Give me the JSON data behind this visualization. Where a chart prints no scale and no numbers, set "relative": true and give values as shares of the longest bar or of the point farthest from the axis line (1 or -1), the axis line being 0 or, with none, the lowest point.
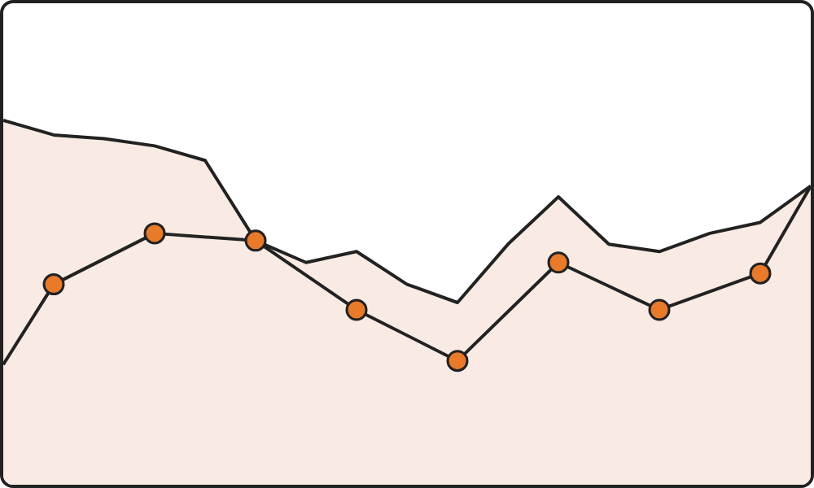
{
  "chart_data": {
    "type": "area",
    "relative": true,
    "marker": "circle",
    "categories": [
      null,
      null,
      null,
      null,
      null,
      null,
      null,
      null,
      null,
      null,
      null,
      null,
      null,
      null,
      null,
      null,
      null
    ],
    "series": [
      {
        "color": "#f9ebe3",
        "marker": "none",
        "values": [
          1,
          0.96,
          0.95,
          0.93,
          0.89,
          0.67,
          0.61,
          0.64,
          0.55,
          0.5,
          0.66,
          0.79,
          0.66,
          0.64,
          0.69,
          0.72,
          0.82
        ]
      },
      {
        "type": "line",
        "color": "#222222",
        "values": [
          0.33,
          0.55,
          null,
          0.69,
          null,
          0.67,
          null,
          0.48,
          null,
          0.34,
          null,
          0.61,
          null,
          0.48,
          null,
          0.58,
          0.82
        ]
      }
    ]
  }
}
